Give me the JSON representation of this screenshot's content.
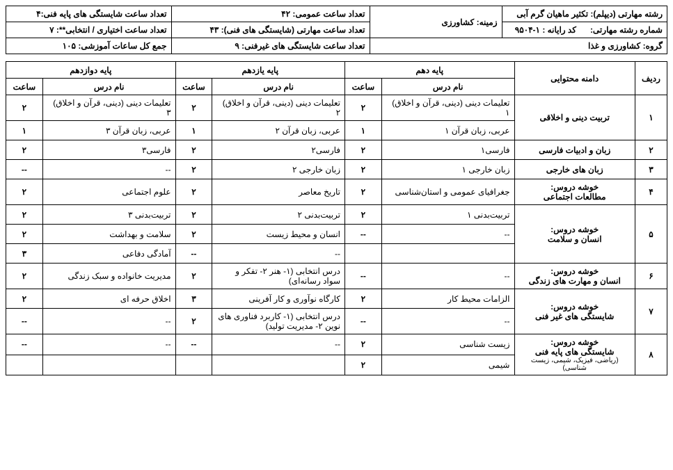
{
  "header": {
    "r1c1_label": "رشته مهارتی (دیپلم):",
    "r1c1_value": "تکثیر ماهیان گرم آبی",
    "r1c2_label": "زمینه:",
    "r1c2_value": "کشاورزی",
    "r1c3": "تعداد ساعت عمومی: ۴۲",
    "r1c4": "تعداد ساعت شایستگی های پایه فنی:۴",
    "r2c1_label": "شماره رشته مهارتی:",
    "r2c2_label": "کد رایانه :",
    "r2c2_value": "۱-۹۵۰۴",
    "r2c3_label": "گروه:",
    "r2c3_value": "کشاورزی و غذا",
    "r2c4": "تعداد ساعت مهارتی (شایستگی های فنی): ۴۳",
    "r2c5": "تعداد ساعت اختیاری / انتخابی**: ۷",
    "r3c1": "تعداد ساعت شایستگی های غیرفنی: ۹",
    "r3c2": "جمع کل ساعات آموزشی: ۱۰۵"
  },
  "columns": {
    "row": "ردیف",
    "domain": "دامنه محتوایی",
    "g10": "پایه دهم",
    "g11": "پایه یازدهم",
    "g12": "پایه دوازدهم",
    "lesson": "نام درس",
    "hours": "ساعت"
  },
  "rows": [
    {
      "n": "۱",
      "domain": "تربیت دینی و اخلاقی",
      "span": 2,
      "cells": [
        {
          "l10": "تعلیمات دینی (دینی، قرآن و اخلاق) ۱",
          "h10": "۲",
          "l11": "تعلیمات دینی (دینی، قرآن و اخلاق) ۲",
          "h11": "۲",
          "l12": "تعلیمات دینی (دینی، قرآن و اخلاق) ۳",
          "h12": "۲"
        },
        {
          "l10": "عربی، زبان قرآن ۱",
          "h10": "۱",
          "l11": "عربی، زبان قرآن ۲",
          "h11": "۱",
          "l12": "عربی، زبان قرآن ۳",
          "h12": "۱"
        }
      ]
    },
    {
      "n": "۲",
      "domain": "زبان و ادبیات فارسی",
      "span": 1,
      "cells": [
        {
          "l10": "فارسی۱",
          "h10": "۲",
          "l11": "فارسی۲",
          "h11": "۲",
          "l12": "فارسی۳",
          "h12": "۲"
        }
      ]
    },
    {
      "n": "۳",
      "domain": "زبان های خارجی",
      "span": 1,
      "cells": [
        {
          "l10": "زبان خارجی ۱",
          "h10": "۲",
          "l11": "زبان خارجی ۲",
          "h11": "۲",
          "l12": "--",
          "h12": "--"
        }
      ]
    },
    {
      "n": "۴",
      "domain": "خوشه دروس:\nمطالعات اجتماعی",
      "span": 1,
      "cells": [
        {
          "l10": "جغرافیای عمومی و استان‌شناسی",
          "h10": "۲",
          "l11": "تاریخ معاصر",
          "h11": "۲",
          "l12": "علوم اجتماعی",
          "h12": "۲"
        }
      ]
    },
    {
      "n": "۵",
      "domain": "خوشه دروس:\nانسان و سلامت",
      "span": 3,
      "cells": [
        {
          "l10": "تربیت‌بدنی ۱",
          "h10": "۲",
          "l11": "تربیت‌بدنی ۲",
          "h11": "۲",
          "l12": "تربیت‌بدنی ۳",
          "h12": "۲"
        },
        {
          "l10": "--",
          "h10": "--",
          "l11": "انسان و محیط زیست",
          "h11": "۲",
          "l12": "سلامت و بهداشت",
          "h12": "۲"
        },
        {
          "l10": "",
          "h10": "",
          "l11": "--",
          "h11": "--",
          "l12": "آمادگی دفاعی",
          "h12": "۳"
        }
      ]
    },
    {
      "n": "۶",
      "domain": "خوشه دروس:\nانسان و مهارت های زندگی",
      "span": 1,
      "cells": [
        {
          "l10": "--",
          "h10": "--",
          "l11": "درس انتخابی (۱- هنر ۲- تفکر و سواد رسانه‌ای)",
          "h11": "۲",
          "l12": "مدیریت خانواده و سبک زندگی",
          "h12": "۲"
        }
      ]
    },
    {
      "n": "۷",
      "domain": "خوشه دروس:\nشایستگی های غیر فنی",
      "span": 2,
      "cells": [
        {
          "l10": "الزامات محیط کار",
          "h10": "۲",
          "l11": "کارگاه نوآوری و کار آفرینی",
          "h11": "۳",
          "l12": "اخلاق حرفه ای",
          "h12": "۲"
        },
        {
          "l10": "--",
          "h10": "--",
          "l11": "درس انتخابی (۱- کاربرد فناوری های نوین ۲- مدیریت تولید)",
          "h11": "۲",
          "l12": "--",
          "h12": "--"
        }
      ]
    },
    {
      "n": "۸",
      "domain": "خوشه دروس:\nشایستگی های پایه فنی",
      "domain_sub": "(ریاضی، فیزیک، شیمی، زیست شناسی)",
      "span": 2,
      "cells": [
        {
          "l10": "زیست شناسی",
          "h10": "۲",
          "l11": "--",
          "h11": "--",
          "l12": "--",
          "h12": "--"
        },
        {
          "l10": "شیمی",
          "h10": "۲",
          "l11": "",
          "h11": "",
          "l12": "",
          "h12": ""
        }
      ]
    }
  ]
}
